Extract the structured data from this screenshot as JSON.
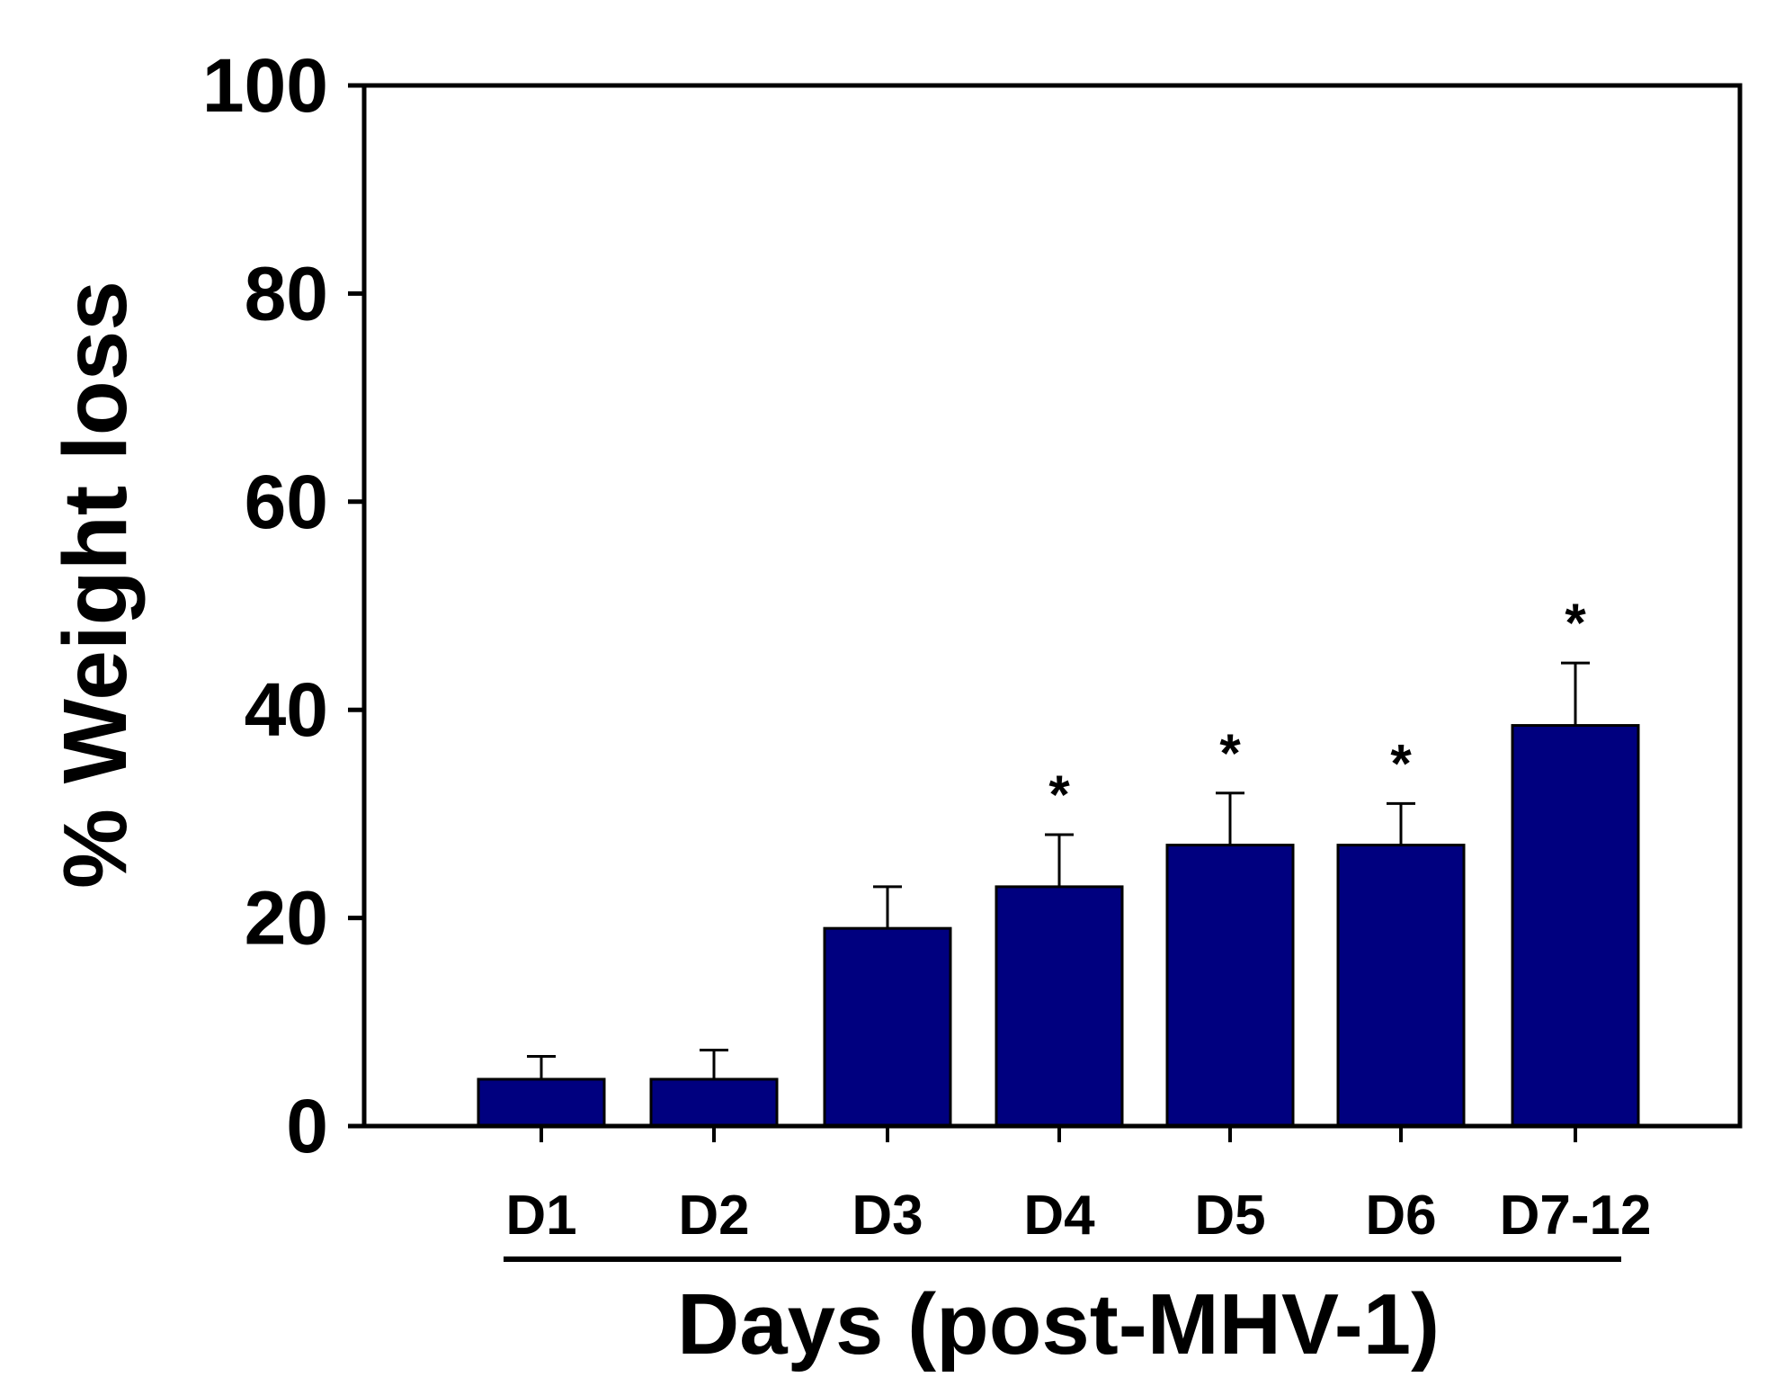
{
  "chart_data": {
    "type": "bar",
    "title": "",
    "xlabel": "Days (post-MHV-1)",
    "ylabel": "% Weight loss",
    "ylim": [
      0,
      100
    ],
    "yticks": [
      0,
      20,
      40,
      60,
      80,
      100
    ],
    "categories": [
      "D1",
      "D2",
      "D3",
      "D4",
      "D5",
      "D6",
      "D7-12"
    ],
    "values": [
      4.5,
      4.5,
      19,
      23,
      27,
      27,
      38.5
    ],
    "errors": [
      2.2,
      2.8,
      4,
      5,
      5,
      4,
      6
    ],
    "significant": [
      false,
      false,
      false,
      true,
      true,
      true,
      true
    ],
    "significance_marker": "*",
    "bar_color": "#00007f",
    "grid": false
  }
}
